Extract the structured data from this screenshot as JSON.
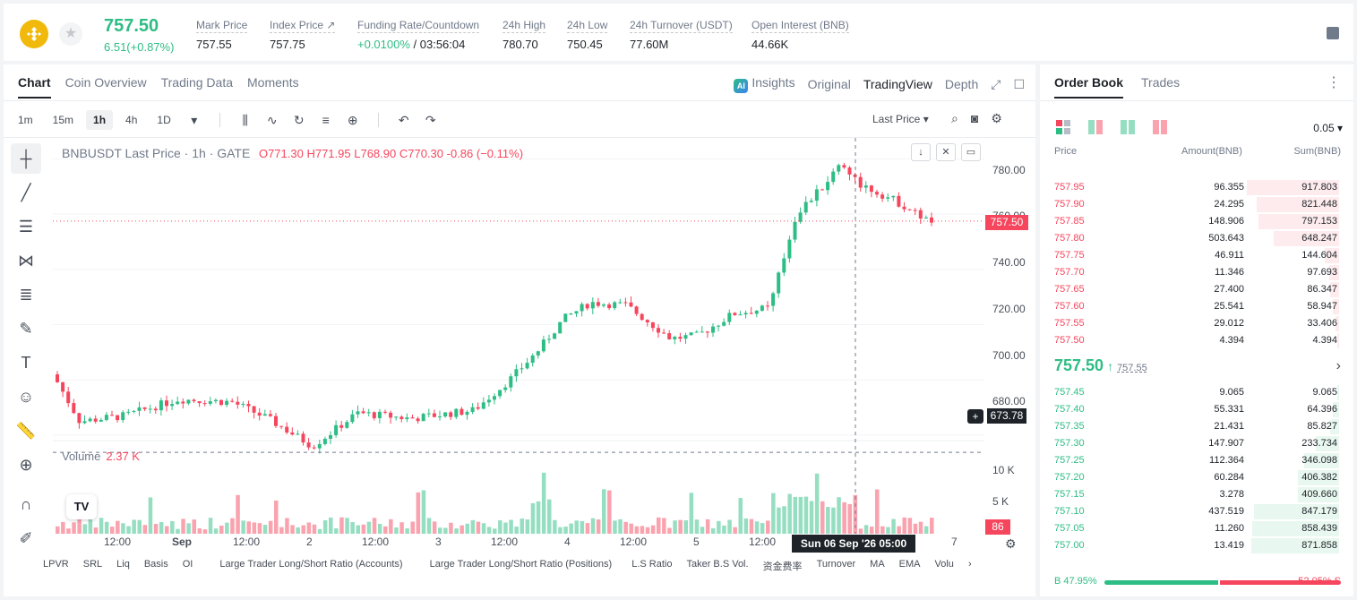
{
  "header": {
    "price": "757.50",
    "change": "6.51(+0.87%)",
    "stats": [
      {
        "label": "Mark Price",
        "value": "757.55"
      },
      {
        "label": "Index Price ↗",
        "value": "757.75"
      },
      {
        "label": "Funding Rate/Countdown",
        "value_green": "+0.0100%",
        "value": " / 03:56:04"
      },
      {
        "label": "24h High",
        "value": "780.70"
      },
      {
        "label": "24h Low",
        "value": "750.45"
      },
      {
        "label": "24h Turnover (USDT)",
        "value": "77.60M"
      },
      {
        "label": "Open Interest (BNB)",
        "value": "44.66K"
      }
    ]
  },
  "chart_tabs": [
    "Chart",
    "Coin Overview",
    "Trading Data",
    "Moments"
  ],
  "chart_views": {
    "insights": "Insights",
    "original": "Original",
    "tradingview": "TradingView",
    "depth": "Depth"
  },
  "intervals": [
    "1m",
    "15m",
    "1h",
    "4h",
    "1D"
  ],
  "last_price_select": "Last Price",
  "legend": {
    "title": "BNBUSDT Last Price · 1h · GATE",
    "o": "O771.30",
    "h": "H771.95",
    "l": "L768.90",
    "c": "C770.30",
    "chg": "-0.86 (−0.11%)"
  },
  "volume_legend": {
    "label": "Volume",
    "value": "2.37 K"
  },
  "y_axis": [
    "780.00",
    "760.00",
    "740.00",
    "720.00",
    "700.00",
    "680.00"
  ],
  "vol_axis": [
    "10 K",
    "5 K"
  ],
  "price_tags": {
    "last": "757.50",
    "cross": "673.78",
    "vol": "86"
  },
  "x_axis": [
    "12:00",
    "Sep",
    "12:00",
    "2",
    "12:00",
    "3",
    "12:00",
    "4",
    "12:00",
    "5",
    "12:00",
    "7"
  ],
  "crosshair_label": "Sun 06 Sep '26   05:00",
  "indicators": [
    "LPVR",
    "SRL",
    "Liq",
    "Basis",
    "OI",
    "Large Trader Long/Short Ratio (Accounts)",
    "Large Trader Long/Short Ratio (Positions)",
    "L.S Ratio",
    "Taker B.S Vol.",
    "资金费率",
    "Turnover",
    "MA",
    "EMA",
    "Volu"
  ],
  "orderbook": {
    "tabs": [
      "Order Book",
      "Trades"
    ],
    "precision": "0.05",
    "headers": {
      "price": "Price",
      "amount": "Amount(BNB)",
      "sum": "Sum(BNB)"
    },
    "asks": [
      {
        "price": "757.95",
        "amount": "96.355",
        "sum": "917.803",
        "depth": 0.86
      },
      {
        "price": "757.90",
        "amount": "24.295",
        "sum": "821.448",
        "depth": 0.77
      },
      {
        "price": "757.85",
        "amount": "148.906",
        "sum": "797.153",
        "depth": 0.75
      },
      {
        "price": "757.80",
        "amount": "503.643",
        "sum": "648.247",
        "depth": 0.61
      },
      {
        "price": "757.75",
        "amount": "46.911",
        "sum": "144.604",
        "depth": 0.136
      },
      {
        "price": "757.70",
        "amount": "11.346",
        "sum": "97.693",
        "depth": 0.092
      },
      {
        "price": "757.65",
        "amount": "27.400",
        "sum": "86.347",
        "depth": 0.081
      },
      {
        "price": "757.60",
        "amount": "25.541",
        "sum": "58.947",
        "depth": 0.055
      },
      {
        "price": "757.55",
        "amount": "29.012",
        "sum": "33.406",
        "depth": 0.031
      },
      {
        "price": "757.50",
        "amount": "4.394",
        "sum": "4.394",
        "depth": 0.004
      }
    ],
    "mid": {
      "price": "757.50",
      "mark": "757.55"
    },
    "bids": [
      {
        "price": "757.45",
        "amount": "9.065",
        "sum": "9.065",
        "depth": 0.009
      },
      {
        "price": "757.40",
        "amount": "55.331",
        "sum": "64.396",
        "depth": 0.06
      },
      {
        "price": "757.35",
        "amount": "21.431",
        "sum": "85.827",
        "depth": 0.08
      },
      {
        "price": "757.30",
        "amount": "147.907",
        "sum": "233.734",
        "depth": 0.22
      },
      {
        "price": "757.25",
        "amount": "112.364",
        "sum": "346.098",
        "depth": 0.325
      },
      {
        "price": "757.20",
        "amount": "60.284",
        "sum": "406.382",
        "depth": 0.382
      },
      {
        "price": "757.15",
        "amount": "3.278",
        "sum": "409.660",
        "depth": 0.385
      },
      {
        "price": "757.10",
        "amount": "437.519",
        "sum": "847.179",
        "depth": 0.795
      },
      {
        "price": "757.05",
        "amount": "11.260",
        "sum": "858.439",
        "depth": 0.806
      },
      {
        "price": "757.00",
        "amount": "13.419",
        "sum": "871.858",
        "depth": 0.818
      }
    ],
    "ratio": {
      "buy": "B 47.95%",
      "sell": "52.05% S",
      "buy_fraction": 0.4795
    }
  },
  "colors": {
    "up": "#2ebd85",
    "down": "#f6465d",
    "up_light": "#e8f7ef",
    "down_light": "#fdebed"
  }
}
